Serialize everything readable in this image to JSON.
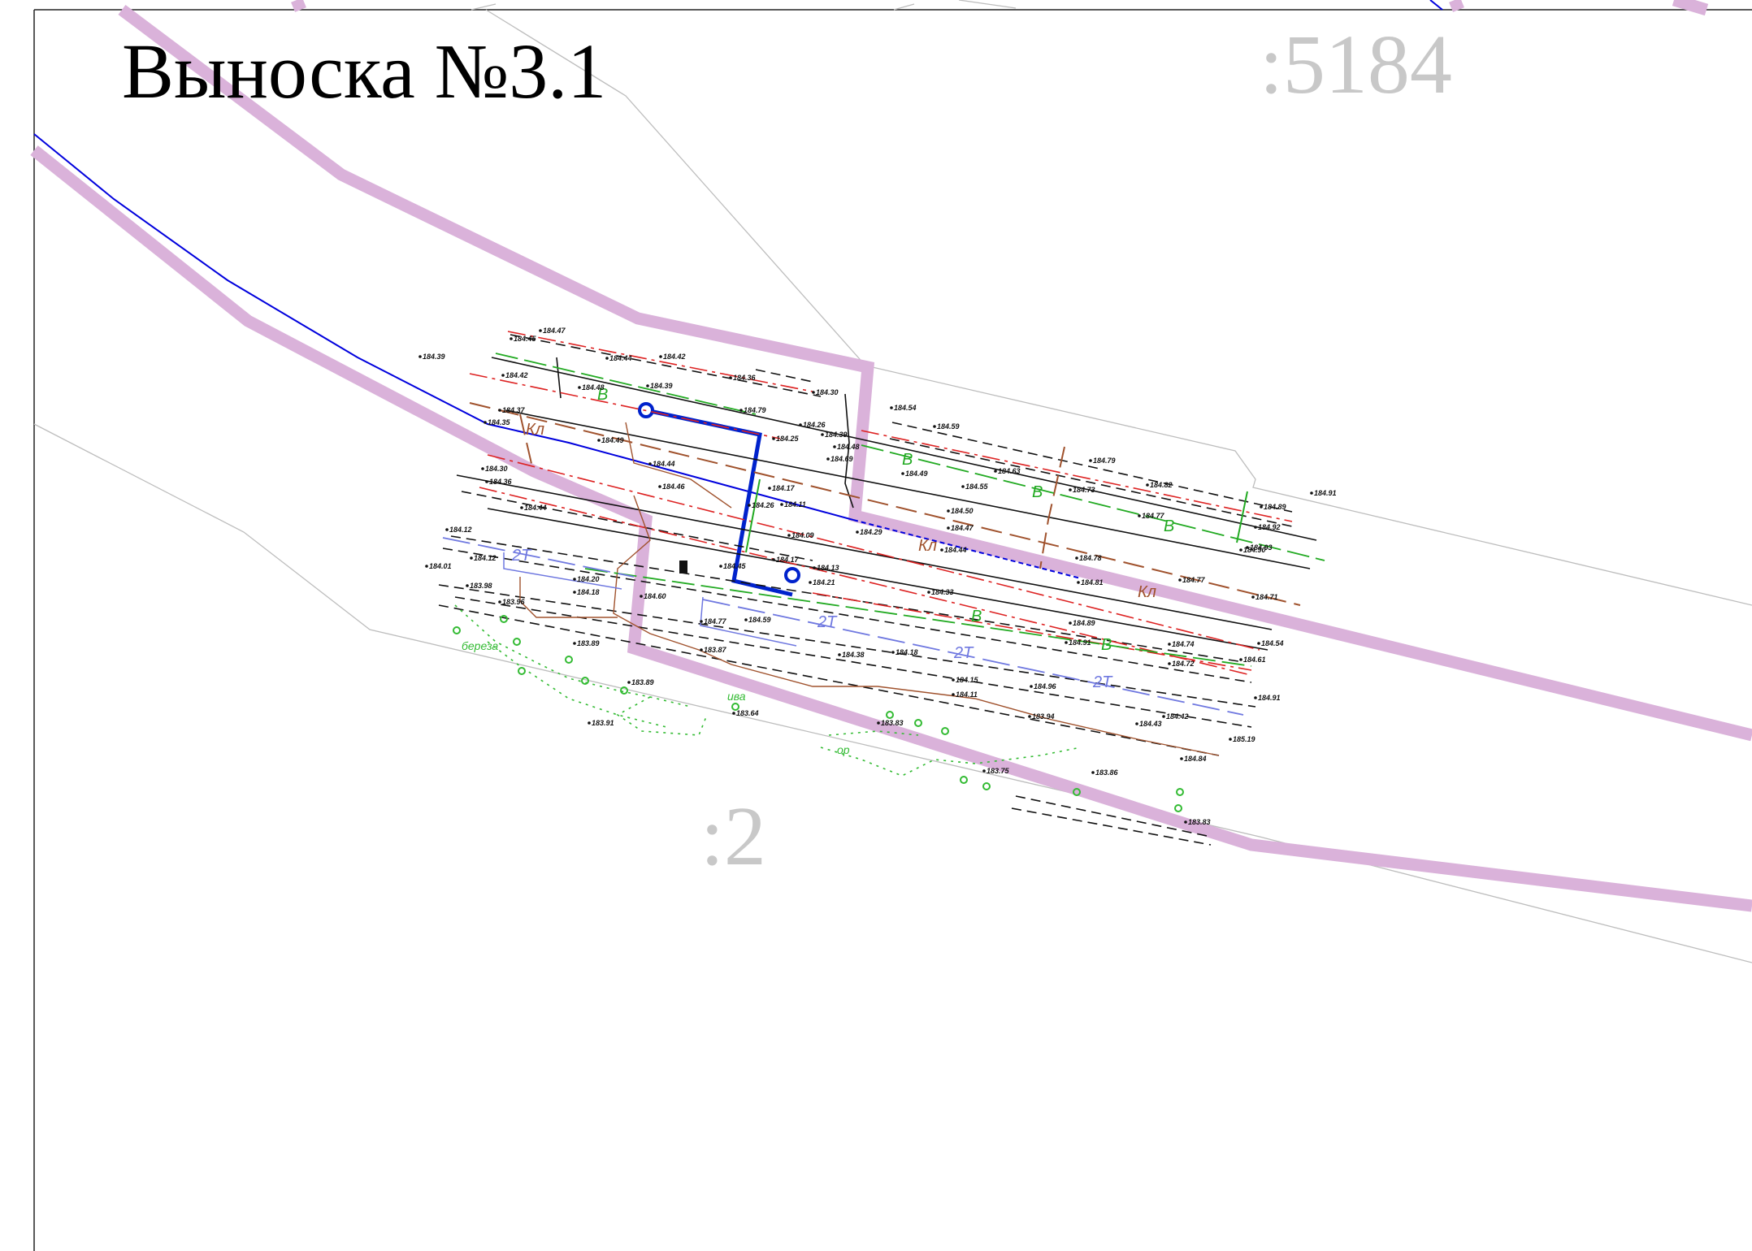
{
  "sheet": {
    "title": "Выноска №3.1",
    "parcels": [
      ":5184",
      ":2"
    ]
  },
  "colors": {
    "boundary": "#d9b3d9",
    "water_main": "#0000dd",
    "heat_main": "#6f78e0",
    "cable": "#a0522d",
    "water_line": "#22aa22",
    "vegetation": "#33bb33",
    "contour": "#bbbbbb",
    "power_line": "#dd2222"
  },
  "utility_labels": [
    {
      "text": "2Т",
      "kind": "heat"
    },
    {
      "text": "2Т",
      "kind": "heat"
    },
    {
      "text": "2Т",
      "kind": "heat"
    },
    {
      "text": "2Т",
      "kind": "heat"
    },
    {
      "text": "Кл",
      "kind": "cable"
    },
    {
      "text": "Кл",
      "kind": "cable"
    },
    {
      "text": "Кл",
      "kind": "cable"
    },
    {
      "text": "В",
      "kind": "water"
    },
    {
      "text": "В",
      "kind": "water"
    },
    {
      "text": "В",
      "kind": "water"
    },
    {
      "text": "В",
      "kind": "water"
    },
    {
      "text": "В",
      "kind": "water"
    },
    {
      "text": "В",
      "kind": "water"
    },
    {
      "text": "береза",
      "kind": "veg"
    },
    {
      "text": "ива",
      "kind": "veg"
    },
    {
      "text": "ор",
      "kind": "veg"
    }
  ],
  "elevations": [
    "184.47",
    "184.45",
    "184.39",
    "184.44",
    "184.42",
    "184.42",
    "184.48",
    "184.39",
    "184.36",
    "184.30",
    "184.79",
    "184.37",
    "184.26",
    "184.25",
    "184.35",
    "184.49",
    "184.39",
    "184.48",
    "184.54",
    "184.59",
    "184.44",
    "184.69",
    "184.49",
    "184.55",
    "184.63",
    "184.79",
    "184.30",
    "184.36",
    "184.46",
    "184.17",
    "184.26",
    "184.11",
    "184.73",
    "184.82",
    "184.89",
    "184.91",
    "184.44",
    "184.50",
    "184.77",
    "184.92",
    "184.12",
    "184.09",
    "184.29",
    "184.47",
    "184.93",
    "184.12",
    "184.45",
    "184.44",
    "184.78",
    "184.90",
    "184.01",
    "184.20",
    "184.17",
    "184.13",
    "184.81",
    "184.77",
    "183.98",
    "184.18",
    "184.21",
    "184.33",
    "184.71",
    "183.96",
    "184.60",
    "184.77",
    "184.59",
    "184.89",
    "184.91",
    "184.74",
    "184.54",
    "183.89",
    "183.87",
    "184.38",
    "184.18",
    "184.72",
    "184.61",
    "183.89",
    "184.15",
    "184.11",
    "184.96",
    "184.91",
    "183.64",
    "183.83",
    "183.94",
    "184.42",
    "184.43",
    "185.19",
    "183.91",
    "183.75",
    "183.86",
    "184.84",
    "183.83"
  ]
}
